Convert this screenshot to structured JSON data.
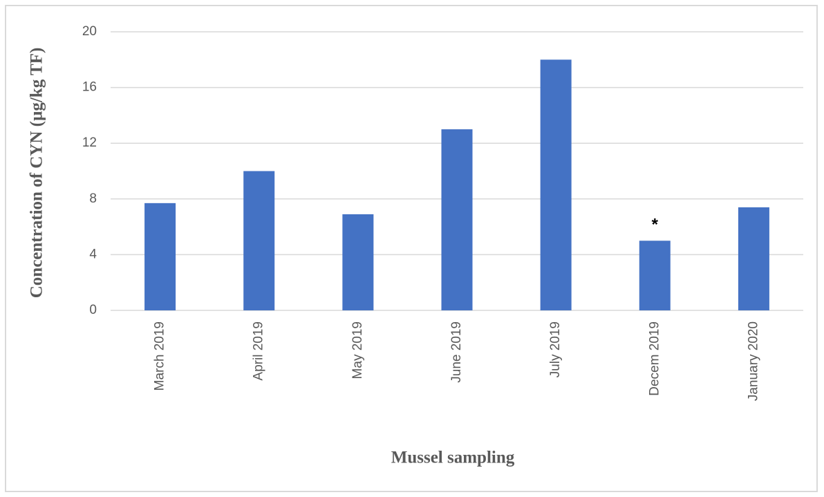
{
  "chart_data": {
    "type": "bar",
    "x_label": "Mussel sampling",
    "y_label": "Concentration of CYN (µg/kg TF)",
    "categories": [
      "March 2019",
      "April 2019",
      "May 2019",
      "June 2019",
      "July 2019",
      "Decem 2019",
      "January 2020"
    ],
    "values": [
      7.7,
      10,
      6.9,
      13,
      18,
      5,
      7.4
    ],
    "color": "#4472c4",
    "ylim": [
      0,
      20
    ],
    "yticks": [
      0,
      4,
      8,
      12,
      16,
      20
    ],
    "grid": true,
    "annotations": [
      {
        "text": "*",
        "category": "Decem 2019"
      }
    ]
  }
}
